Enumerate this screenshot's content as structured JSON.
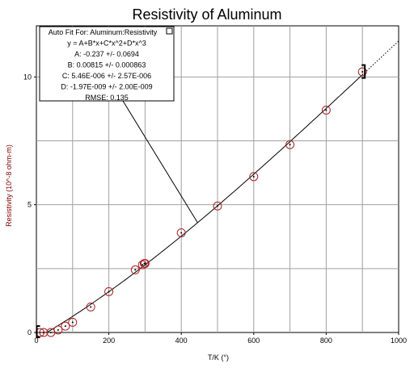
{
  "chart_data": {
    "type": "scatter",
    "title": "Resistivity of Aluminum",
    "xlabel": "T/K (°)",
    "ylabel": "Resistivity (10^-8 ohm-m)",
    "xlim": [
      0,
      1000
    ],
    "ylim": [
      0,
      12
    ],
    "xticks": [
      "0",
      "200",
      "400",
      "600",
      "800",
      "1000"
    ],
    "yticks": [
      "0",
      "5",
      "10"
    ],
    "grid": true,
    "series": [
      {
        "name": "Aluminum:Resistivity",
        "marker": "circle",
        "x": [
          10,
          20,
          40,
          60,
          80,
          100,
          150,
          200,
          273,
          293,
          298,
          300,
          400,
          500,
          600,
          700,
          800,
          900
        ],
        "y": [
          0.0,
          0.0,
          0.0,
          0.1,
          0.25,
          0.4,
          1.0,
          1.6,
          2.45,
          2.65,
          2.7,
          2.7,
          3.9,
          4.95,
          6.1,
          7.35,
          8.7,
          10.2
        ]
      }
    ],
    "fit": {
      "equation": "y = A+B*x+C*x^2+D*x^3",
      "A": -0.237,
      "B": 0.00815,
      "C": 5.46e-06,
      "D": -1.97e-09,
      "range": [
        10,
        900
      ],
      "extrapolate_to": 1000
    }
  },
  "annotation": {
    "header": "Auto Fit For:  Aluminum:Resistivity",
    "lines": [
      "y = A+B*x+C*x^2+D*x^3",
      "A: -0.237 +/- 0.0694",
      "B: 0.00815 +/- 0.000863",
      "C: 5.46E-006 +/- 2.57E-006",
      "D: -1.97E-009 +/- 2.00E-009",
      "RMSE: 0.135"
    ]
  },
  "colors": {
    "marker": "#aa2222",
    "curve": "#000000",
    "grid": "#a0a0a0",
    "ylabel": "#800000"
  }
}
